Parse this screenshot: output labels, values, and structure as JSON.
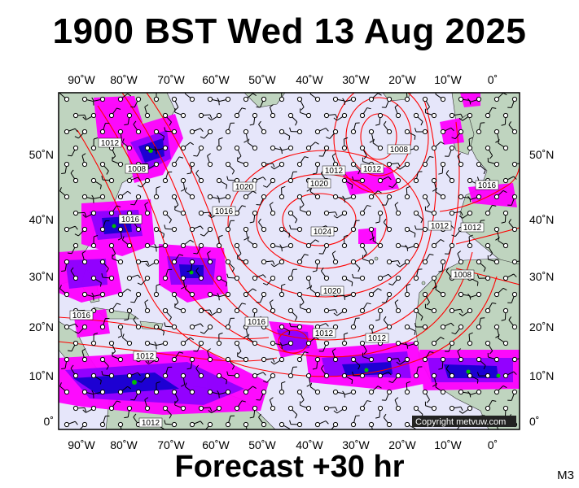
{
  "title": "1900 BST Wed 13 Aug 2025",
  "footer": "Forecast +30 hr",
  "code": "M3",
  "copyright": "Copyright metvuw.com",
  "lon_ticks": [
    "90˚W",
    "80˚W",
    "70˚W",
    "60˚W",
    "50˚W",
    "40˚W",
    "30˚W",
    "20˚W",
    "10˚W",
    "0˚"
  ],
  "lat_ticks": [
    "50˚N",
    "40˚N",
    "30˚N",
    "20˚N",
    "10˚N",
    "0˚"
  ],
  "isobar_labels": [
    {
      "text": "1012"
    },
    {
      "text": "1008"
    },
    {
      "text": "1012"
    },
    {
      "text": "1016"
    },
    {
      "text": "1020"
    },
    {
      "text": "1020"
    },
    {
      "text": "1024"
    },
    {
      "text": "1016"
    },
    {
      "text": "1020"
    },
    {
      "text": "1016"
    },
    {
      "text": "1012"
    },
    {
      "text": "1016"
    },
    {
      "text": "1012"
    },
    {
      "text": "1012"
    },
    {
      "text": "1008"
    },
    {
      "text": "1008"
    },
    {
      "text": "1012"
    },
    {
      "text": "1016"
    },
    {
      "text": "1012"
    },
    {
      "text": "1012"
    },
    {
      "text": "1012"
    }
  ],
  "colors": {
    "ocean": "#e6e6fa",
    "land": "#bfd4bf",
    "isobar": "#ff0000",
    "rain_light": "#ff00ff",
    "rain_mid": "#8000ff",
    "rain_heavy": "#0000c8",
    "rain_core": "#00c000"
  }
}
